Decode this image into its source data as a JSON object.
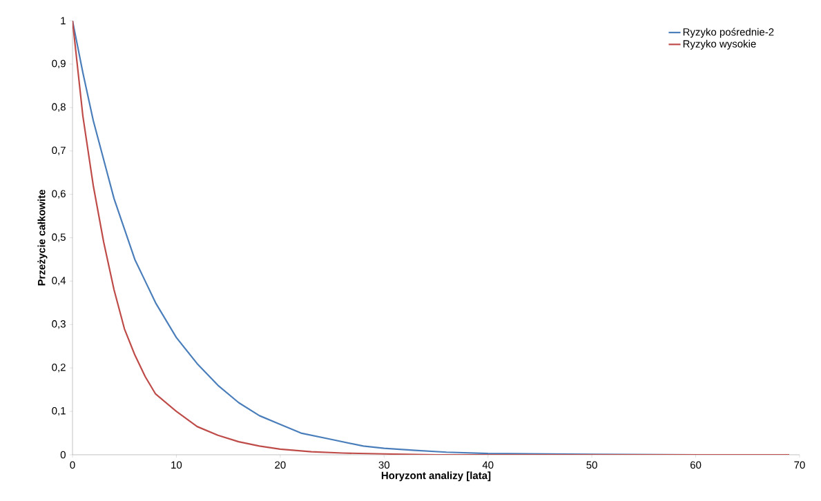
{
  "chart_data": {
    "type": "line",
    "xlabel": "Horyzont analizy [lata]",
    "ylabel": "Przeżycie całkowite",
    "xlim": [
      0,
      70
    ],
    "xticks": [
      0,
      10,
      20,
      30,
      40,
      50,
      60,
      70
    ],
    "ylim": [
      0,
      1
    ],
    "yticks": [
      0,
      {
        "value": 0.1,
        "label": "0,1"
      },
      {
        "value": 0.2,
        "label": "0,2"
      },
      {
        "value": 0.3,
        "label": "0,3"
      },
      {
        "value": 0.4,
        "label": "0,4"
      },
      {
        "value": 0.5,
        "label": "0,5"
      },
      {
        "value": 0.6,
        "label": "0,6"
      },
      {
        "value": 0.7,
        "label": "0,7"
      },
      {
        "value": 0.8,
        "label": "0,8"
      },
      {
        "value": 0.9,
        "label": "0,9"
      },
      1
    ],
    "legend": "top right",
    "grid": false,
    "marker": "none",
    "line_style": "solid",
    "series": [
      {
        "name": "Ryzyko pośrednie-2",
        "color": "#4a7ebb",
        "x": [
          0,
          1,
          2,
          3,
          4,
          5,
          6,
          7,
          8,
          10,
          12,
          14,
          16,
          18,
          20,
          22,
          25,
          28,
          30,
          33,
          36,
          40,
          50,
          60,
          69
        ],
        "values": [
          1,
          0.88,
          0.77,
          0.68,
          0.59,
          0.52,
          0.45,
          0.4,
          0.35,
          0.27,
          0.21,
          0.16,
          0.12,
          0.09,
          0.07,
          0.05,
          0.035,
          0.02,
          0.015,
          0.01,
          0.006,
          0.003,
          0.001,
          0,
          0
        ]
      },
      {
        "name": "Ryzyko wysokie",
        "color": "#be4b48",
        "x": [
          0,
          1,
          2,
          3,
          4,
          5,
          6,
          7,
          8,
          10,
          12,
          14,
          16,
          18,
          20,
          23,
          26,
          30,
          35,
          40,
          50,
          60,
          69
        ],
        "values": [
          1,
          0.78,
          0.62,
          0.49,
          0.38,
          0.29,
          0.23,
          0.18,
          0.14,
          0.1,
          0.065,
          0.045,
          0.03,
          0.02,
          0.013,
          0.007,
          0.004,
          0.002,
          0,
          0,
          0,
          0,
          0
        ]
      }
    ]
  }
}
